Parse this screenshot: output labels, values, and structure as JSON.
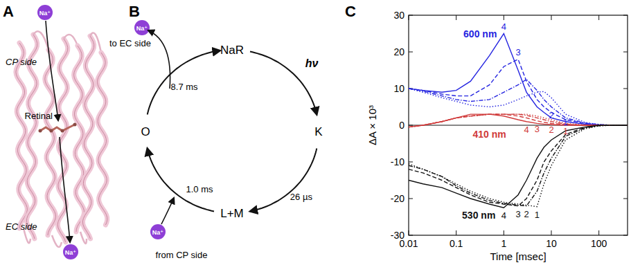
{
  "panel_a": {
    "letter": "A",
    "ion": "Na⁺",
    "cp_side": "CP side",
    "ec_side": "EC side",
    "retinal": "Retinal"
  },
  "panel_b": {
    "letter": "B",
    "ion": "Na⁺",
    "nodes": [
      {
        "label": "NaR"
      },
      {
        "label": "K"
      },
      {
        "label": "L+M"
      },
      {
        "label": "O"
      }
    ],
    "edges": [
      {
        "label": "hν"
      },
      {
        "label": "26 µs"
      },
      {
        "label": "1.0 ms"
      },
      {
        "label": "8.7 ms"
      }
    ],
    "uptake": "from CP side",
    "release": "to EC side"
  },
  "panel_c": {
    "letter": "C"
  },
  "chart_data": {
    "type": "line",
    "log": "x",
    "xlabel": "Time [msec]",
    "ylabel": "ΔA × 10³",
    "xlim": [
      0.01,
      400
    ],
    "ylim": [
      -30,
      30
    ],
    "xticks": [
      0.01,
      0.1,
      1,
      10,
      100
    ],
    "yticks": [
      -30,
      -20,
      -10,
      0,
      10,
      20,
      30
    ],
    "x": [
      0.01,
      0.02,
      0.05,
      0.1,
      0.2,
      0.5,
      1,
      2,
      3,
      5,
      7,
      10,
      20,
      50,
      100,
      200,
      400
    ],
    "groups": [
      {
        "label": "600 nm",
        "color": "#2424e0",
        "series": [
          {
            "name": "1",
            "line_style": "dotted",
            "values": [
              10,
              9,
              7.5,
              6.5,
              5.5,
              5,
              5.5,
              7,
              8,
              9,
              9.2,
              7.5,
              3,
              0.8,
              0.2,
              0,
              0
            ]
          },
          {
            "name": "2",
            "line_style": "dashdot",
            "values": [
              10,
              9.3,
              8,
              7,
              6.5,
              7,
              9,
              11,
              12.5,
              9.5,
              7,
              5,
              2,
              0.6,
              0.2,
              0,
              0
            ]
          },
          {
            "name": "3",
            "line_style": "dashed",
            "values": [
              10,
              9.5,
              8.5,
              8,
              8,
              11,
              16,
              18,
              12,
              7,
              5,
              3.5,
              1.5,
              0.5,
              0.1,
              0,
              0
            ]
          },
          {
            "name": "4",
            "line_style": "solid",
            "values": [
              10,
              9.5,
              9,
              9.5,
              12,
              19,
              25,
              15,
              9,
              5,
              3.5,
              2,
              1,
              0.3,
              0.1,
              0,
              0
            ]
          }
        ]
      },
      {
        "label": "410 nm",
        "color": "#d03a3a",
        "series": [
          {
            "name": "1",
            "line_style": "dotted",
            "values": [
              -0.5,
              0,
              1,
              2,
              2.5,
              3,
              3,
              3,
              3,
              2.5,
              2,
              1.5,
              0.5,
              0.1,
              0,
              0,
              0
            ]
          },
          {
            "name": "2",
            "line_style": "dashdot",
            "values": [
              -0.5,
              0,
              1,
              2,
              2.5,
              3,
              3,
              3,
              2.7,
              2,
              1.5,
              1,
              0.3,
              0,
              0,
              0,
              0
            ]
          },
          {
            "name": "3",
            "line_style": "dashed",
            "values": [
              -0.5,
              0,
              1,
              2,
              2.5,
              3,
              3,
              2.5,
              2,
              1.2,
              0.8,
              0.5,
              0.2,
              0,
              0,
              0,
              0
            ]
          },
          {
            "name": "4",
            "line_style": "solid",
            "values": [
              -0.5,
              0,
              1,
              2,
              3,
              3,
              2.5,
              1.5,
              1,
              0.5,
              0.3,
              0.2,
              0,
              0,
              0,
              0,
              0
            ]
          }
        ]
      },
      {
        "label": "530 nm",
        "color": "#111111",
        "series": [
          {
            "name": "1",
            "line_style": "dotted",
            "values": [
              -10.5,
              -12,
              -14,
              -16,
              -18,
              -20,
              -21,
              -21.5,
              -21.8,
              -22.2,
              -16,
              -11,
              -4,
              -1,
              -0.2,
              0,
              0
            ]
          },
          {
            "name": "2",
            "line_style": "dashdot",
            "values": [
              -11,
              -12,
              -14,
              -16.5,
              -18.5,
              -20.5,
              -21.3,
              -21.8,
              -22,
              -18,
              -13,
              -9,
              -3,
              -0.8,
              -0.1,
              0,
              0
            ]
          },
          {
            "name": "3",
            "line_style": "dashed",
            "values": [
              -12,
              -13,
              -15,
              -17,
              -19,
              -21,
              -21.5,
              -22,
              -20,
              -15,
              -10,
              -7,
              -2.5,
              -0.6,
              -0.1,
              0,
              0
            ]
          },
          {
            "name": "4",
            "line_style": "solid",
            "values": [
              -15,
              -16,
              -17,
              -18.5,
              -20,
              -21.5,
              -22.5,
              -19,
              -15,
              -9,
              -6,
              -4,
              -1.5,
              -0.5,
              0,
              0,
              0
            ]
          }
        ]
      }
    ]
  }
}
